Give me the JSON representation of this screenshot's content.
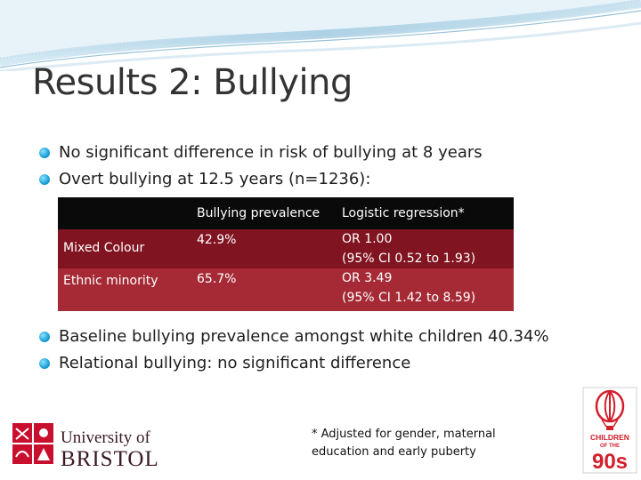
{
  "slide": {
    "title": "Results 2: Bullying",
    "bullets_top": [
      "No significant difference in risk of bullying at 8 years",
      "Overt bullying at 12.5 years (n=1236):"
    ],
    "table": {
      "headers": [
        "",
        "Bullying prevalence",
        "Logistic regression*"
      ],
      "rows": [
        {
          "group": "Mixed Colour",
          "prevalence": "42.9%",
          "or_line1": "OR 1.00",
          "or_line2": "(95% CI 0.52 to 1.93)"
        },
        {
          "group": "Ethnic minority",
          "prevalence": "65.7%",
          "or_line1": "OR 3.49",
          "or_line2": "(95% CI 1.42 to 8.59)"
        }
      ]
    },
    "bullets_bottom": [
      "Baseline bullying prevalence amongst white children 40.34%",
      "Relational bullying: no significant difference"
    ],
    "footnote_line1": "* Adjusted for gender, maternal",
    "footnote_line2": "education and early puberty"
  },
  "logos": {
    "bristol_line1": "University of",
    "bristol_line2": "BRISTOL",
    "c90_line1": "CHILDREN",
    "c90_line2": "OF THE",
    "c90_line3": "90s"
  },
  "colors": {
    "accent_blue": "#1aa0d8",
    "row_dark_red": "#801420",
    "row_red": "#a52a35",
    "header_black": "#0a0a0a",
    "brand_red": "#c8102e"
  }
}
